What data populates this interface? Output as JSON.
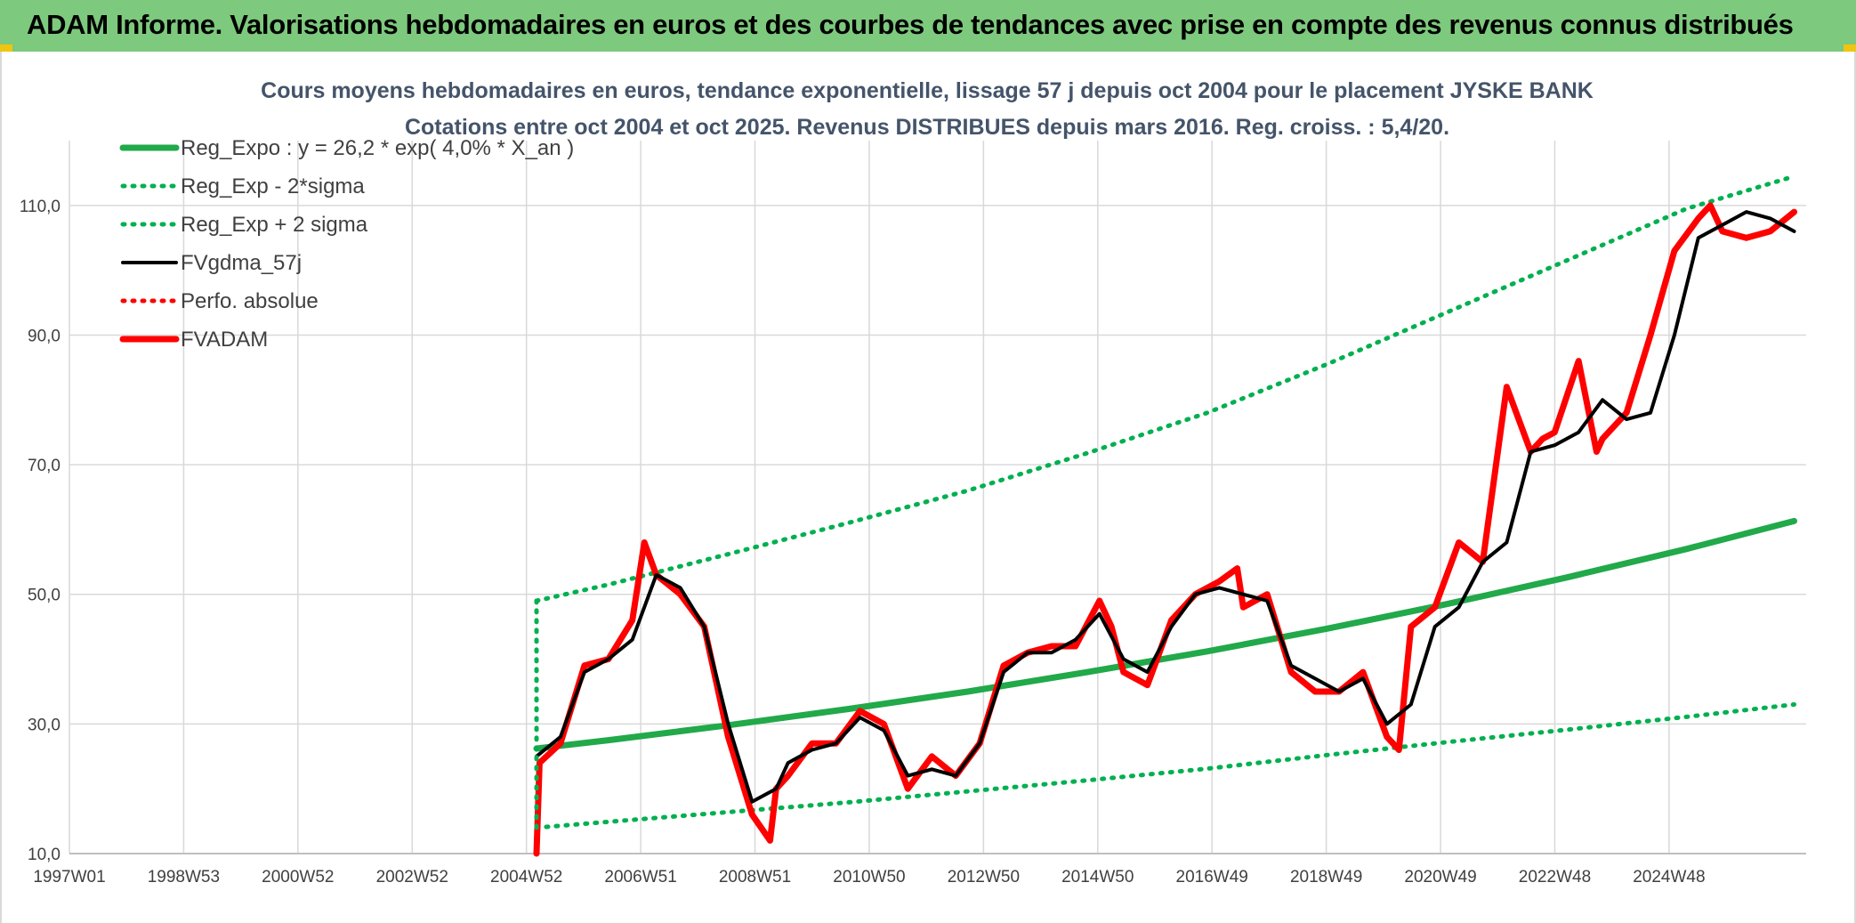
{
  "header": {
    "title": "ADAM Informe. Valorisations hebdomadaires en euros et des courbes de tendances avec prise en compte des revenus connus distribués"
  },
  "colors": {
    "banner": "#7dc97d",
    "reg_green": "#21a94a",
    "dotted_green": "#00b050",
    "black": "#000000",
    "red": "#ff0000",
    "grid": "#d9d9d9"
  },
  "chart_data": {
    "type": "line",
    "title": "Cours moyens hebdomadaires en euros, tendance exponentielle, lissage 57 j depuis oct 2004 pour le placement JYSKE BANK",
    "subtitle": "Cotations entre oct 2004 et oct 2025. Revenus DISTRIBUES depuis mars 2016. Reg. croiss. : 5,4/20.",
    "xlabel": "",
    "ylabel": "",
    "x_ticks": [
      "1997W01",
      "1998W53",
      "2000W52",
      "2002W52",
      "2004W52",
      "2006W51",
      "2008W51",
      "2010W50",
      "2012W50",
      "2014W50",
      "2016W49",
      "2018W49",
      "2020W49",
      "2022W48",
      "2024W48"
    ],
    "x_range": [
      1997.0,
      2026.0
    ],
    "y_ticks": [
      "10,0",
      "30,0",
      "50,0",
      "70,0",
      "90,0",
      "110,0"
    ],
    "ylim": [
      10,
      120
    ],
    "grid": true,
    "legend_position": "top-left",
    "series": [
      {
        "name": "Reg_Expo : y = 26,2 * exp( 4,0% *  X_an )",
        "style": "solid-thick",
        "color": "#21a94a",
        "x": [
          2004.8,
          2006,
          2008,
          2010,
          2012,
          2014,
          2016,
          2018,
          2020,
          2022,
          2024,
          2025.8
        ],
        "values": [
          26.2,
          27.5,
          29.8,
          32.3,
          35.0,
          38.0,
          41.2,
          44.7,
          48.5,
          52.6,
          57.0,
          61.3
        ]
      },
      {
        "name": "Reg_Exp - 2*sigma",
        "style": "dotted",
        "color": "#00b050",
        "x": [
          2004.8,
          2006,
          2008,
          2010,
          2012,
          2014,
          2016,
          2018,
          2020,
          2022,
          2024,
          2025.8
        ],
        "values": [
          14.0,
          14.9,
          16.4,
          17.9,
          19.6,
          21.3,
          23.1,
          25.2,
          27.2,
          29.1,
          31.1,
          33.0
        ]
      },
      {
        "name": "Reg_Exp + 2 sigma",
        "style": "dotted",
        "color": "#00b050",
        "x": [
          2004.8,
          2006,
          2008,
          2010,
          2012,
          2014,
          2016,
          2018,
          2020,
          2022,
          2024,
          2025.8
        ],
        "values": [
          49.0,
          51.5,
          56.2,
          61.0,
          66.0,
          71.8,
          78.0,
          85.5,
          93.5,
          101.5,
          109.5,
          114.5
        ]
      },
      {
        "name": "FVgdma_57j",
        "style": "solid",
        "color": "#000000",
        "x": [
          2004.8,
          2005.2,
          2005.6,
          2006.0,
          2006.4,
          2006.8,
          2007.2,
          2007.6,
          2008.0,
          2008.4,
          2008.8,
          2009.0,
          2009.4,
          2009.8,
          2010.2,
          2010.6,
          2011.0,
          2011.4,
          2011.8,
          2012.2,
          2012.6,
          2013.0,
          2013.4,
          2013.8,
          2014.2,
          2014.6,
          2015.0,
          2015.4,
          2015.8,
          2016.2,
          2016.6,
          2017.0,
          2017.4,
          2017.8,
          2018.2,
          2018.6,
          2019.0,
          2019.4,
          2019.8,
          2020.2,
          2020.6,
          2021.0,
          2021.4,
          2021.8,
          2022.2,
          2022.6,
          2023.0,
          2023.4,
          2023.8,
          2024.2,
          2024.6,
          2025.0,
          2025.4,
          2025.8
        ],
        "values": [
          25,
          28,
          38,
          40,
          43,
          53,
          51,
          45,
          30,
          18,
          20,
          24,
          26,
          27,
          31,
          29,
          22,
          23,
          22,
          27,
          38,
          41,
          41,
          43,
          47,
          40,
          38,
          45,
          50,
          51,
          50,
          49,
          39,
          37,
          35,
          37,
          30,
          33,
          45,
          48,
          55,
          58,
          72,
          73,
          75,
          80,
          77,
          78,
          90,
          105,
          107,
          109,
          108,
          106
        ]
      },
      {
        "name": "Perfo. absolue",
        "style": "dotted",
        "color": "#ff0000",
        "x": [],
        "values": []
      },
      {
        "name": "FVADAM",
        "style": "solid-thick",
        "color": "#ff0000",
        "x": [
          2004.8,
          2004.85,
          2005.2,
          2005.6,
          2006.0,
          2006.4,
          2006.6,
          2006.8,
          2007.2,
          2007.6,
          2008.0,
          2008.4,
          2008.7,
          2008.8,
          2009.0,
          2009.4,
          2009.8,
          2010.2,
          2010.6,
          2011.0,
          2011.4,
          2011.8,
          2012.2,
          2012.6,
          2013.0,
          2013.4,
          2013.8,
          2014.2,
          2014.4,
          2014.6,
          2015.0,
          2015.4,
          2015.8,
          2016.2,
          2016.5,
          2016.6,
          2017.0,
          2017.4,
          2017.8,
          2018.2,
          2018.6,
          2019.0,
          2019.2,
          2019.4,
          2019.8,
          2020.2,
          2020.6,
          2021.0,
          2021.4,
          2021.6,
          2021.8,
          2022.2,
          2022.5,
          2022.6,
          2023.0,
          2023.4,
          2023.8,
          2024.2,
          2024.4,
          2024.6,
          2025.0,
          2025.4,
          2025.8
        ],
        "values": [
          10,
          24,
          27,
          39,
          40,
          46,
          58,
          53,
          50,
          45,
          28,
          16,
          12,
          20,
          22,
          27,
          27,
          32,
          30,
          20,
          25,
          22,
          27,
          39,
          41,
          42,
          42,
          49,
          45,
          38,
          36,
          46,
          50,
          52,
          54,
          48,
          50,
          38,
          35,
          35,
          38,
          28,
          26,
          45,
          48,
          58,
          55,
          82,
          72,
          74,
          75,
          86,
          72,
          74,
          78,
          90,
          103,
          108,
          110,
          106,
          105,
          106,
          109
        ]
      }
    ]
  }
}
